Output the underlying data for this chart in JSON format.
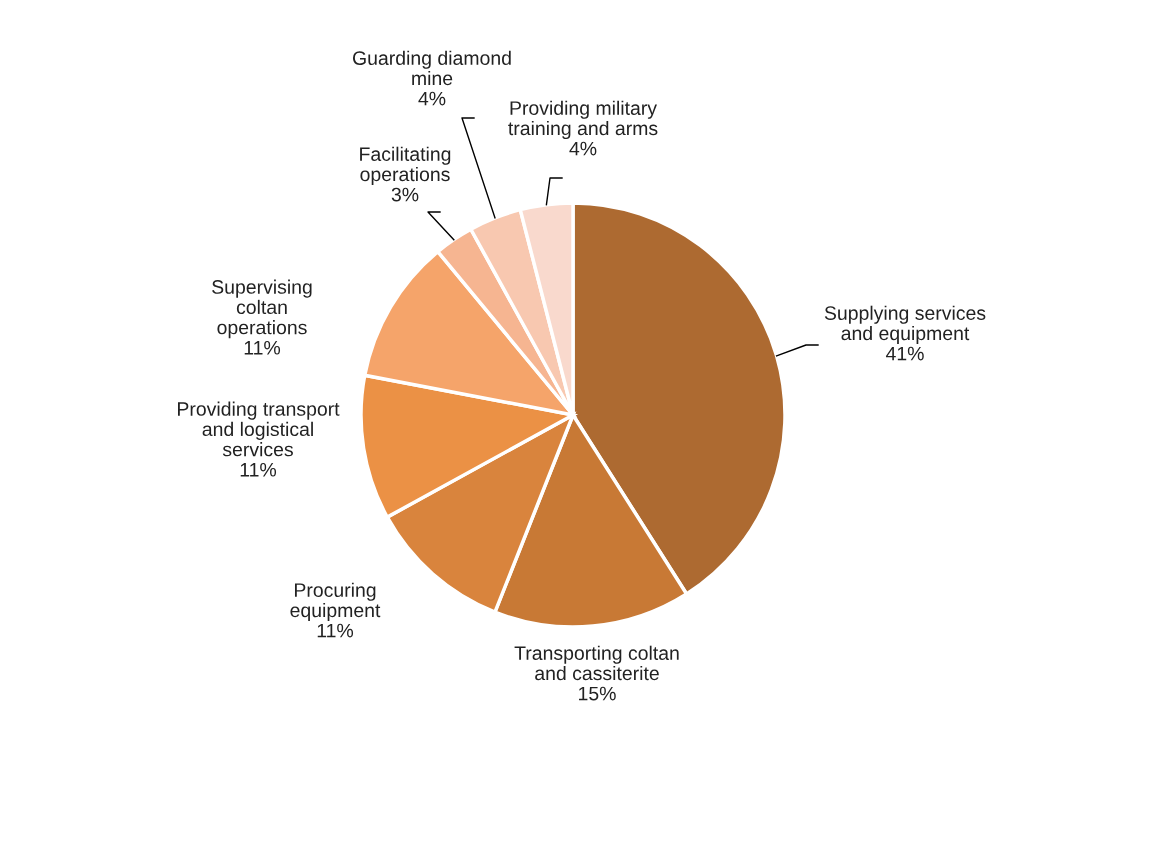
{
  "chart_data": {
    "type": "pie",
    "categories": [
      "Supplying services\nand equipment",
      "Transporting coltan\nand cassiterite",
      "Procuring\nequipment",
      "Providing transport\nand logistical\nservices",
      "Supervising\ncoltan\noperations",
      "Facilitating\noperations",
      "Guarding diamond\nmine",
      "Providing military\ntraining and arms"
    ],
    "values": [
      41,
      15,
      11,
      11,
      11,
      3,
      4,
      4
    ],
    "value_labels": [
      "41%",
      "15%",
      "11%",
      "11%",
      "11%",
      "3%",
      "4%",
      "4%"
    ],
    "colors": [
      "#ad6a31",
      "#c87935",
      "#d9843d",
      "#eb9145",
      "#f5a46a",
      "#f6b591",
      "#f8c8b0",
      "#f9d9cd"
    ]
  }
}
